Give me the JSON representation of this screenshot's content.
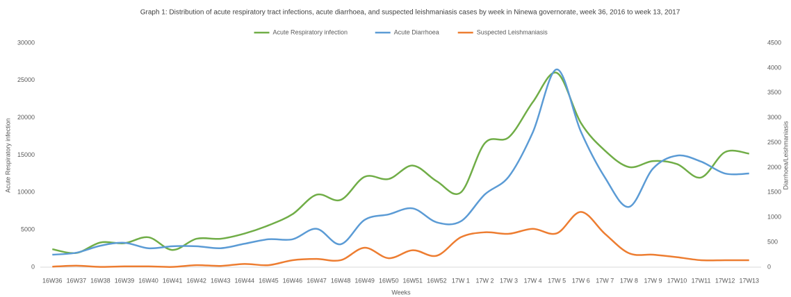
{
  "chart_data": {
    "type": "line",
    "title": "Graph 1: Distribution of acute respiratory tract infections, acute diarrhoea, and suspected leishmaniasis cases by week in Ninewa governorate, week 36, 2016 to week 13, 2017",
    "x_label": "Weeks",
    "y_label": "Acute Respiratory infection",
    "y2_label": "Diarrhoea/Leishmaniasis",
    "categories": [
      "16W36",
      "16W37",
      "16W38",
      "16W39",
      "16W40",
      "16W41",
      "16W42",
      "16W43",
      "16W44",
      "16W45",
      "16W46",
      "16W47",
      "16W48",
      "16W49",
      "16W50",
      "16W51",
      "16W52",
      "17W 1",
      "17W 2",
      "17W 3",
      "17W 4",
      "17W 5",
      "17W 6",
      "17W 7",
      "17W 8",
      "17W 9",
      "17W10",
      "17W11",
      "17W12",
      "17W13"
    ],
    "series": [
      {
        "name": "Acute Respiratory infection",
        "color": "#70ad47",
        "values": [
          2400,
          1900,
          3300,
          3200,
          4000,
          2300,
          3800,
          3800,
          4500,
          5600,
          7100,
          9700,
          9000,
          12100,
          11800,
          13600,
          11500,
          10000,
          16600,
          17400,
          22100,
          26000,
          19300,
          15600,
          13400,
          14200,
          13800,
          12000,
          15400,
          15200
        ]
      },
      {
        "name": "Acute Diarrhoea",
        "color": "#5b9bd5",
        "axis": "y2",
        "values": [
          250,
          290,
          430,
          490,
          380,
          420,
          420,
          380,
          470,
          560,
          560,
          770,
          460,
          950,
          1060,
          1180,
          900,
          920,
          1460,
          1820,
          2710,
          3970,
          2720,
          1800,
          1210,
          1980,
          2240,
          2120,
          1880,
          1880
        ]
      },
      {
        "name": "Suspected Leishmaniasis",
        "color": "#ed7d31",
        "axis": "y2",
        "values": [
          10,
          30,
          5,
          15,
          15,
          5,
          40,
          25,
          65,
          40,
          140,
          165,
          140,
          390,
          180,
          340,
          230,
          600,
          700,
          670,
          770,
          680,
          1110,
          670,
          280,
          250,
          200,
          140,
          140,
          140
        ]
      }
    ],
    "ylim": [
      0,
      30000
    ],
    "yticks": [
      0,
      5000,
      10000,
      15000,
      20000,
      25000,
      30000
    ],
    "y2lim": [
      0,
      4500
    ],
    "y2ticks": [
      0,
      500,
      1000,
      1500,
      2000,
      2500,
      3000,
      3500,
      4000,
      4500
    ],
    "legend": "top",
    "smooth": true
  }
}
